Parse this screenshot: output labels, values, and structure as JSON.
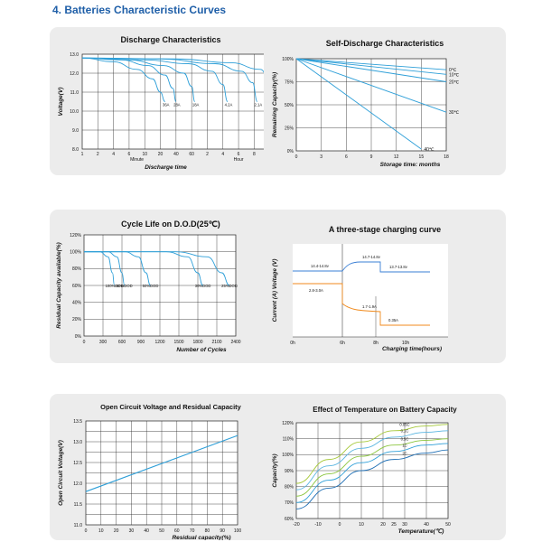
{
  "page_title": "4.  Batteries Characteristic Curves",
  "colors": {
    "curve": "#2e9fd8",
    "curve_dark": "#1f6fb5",
    "grid": "#222222",
    "title": "#1f5fa8",
    "orange": "#f08a1c",
    "blue": "#3a7fd5",
    "green": "#8cc63f"
  },
  "chart_data": [
    {
      "id": "discharge",
      "type": "line",
      "title": "Discharge Characteristics",
      "xlabel": "Discharge time",
      "ylabel": "Voltage(V)",
      "x_ticks": [
        "1",
        "2",
        "4",
        "6",
        "10",
        "20",
        "40",
        "60",
        "2",
        "4",
        "6",
        "8",
        "10",
        "12"
      ],
      "x_groups": [
        "Minute",
        "Hour"
      ],
      "y_ticks": [
        "8.0",
        "9.0",
        "10.0",
        "11.0",
        "12.0",
        "13.0"
      ],
      "ylim": [
        8.0,
        13.0
      ],
      "series": [
        {
          "name": "36A",
          "x": [
            0.0,
            2,
            3.5,
            4.5,
            5.0,
            5.3
          ],
          "y": [
            12.8,
            12.6,
            12.2,
            11.7,
            11.0,
            10.5
          ]
        },
        {
          "name": "28A",
          "x": [
            0.0,
            2.5,
            4.2,
            5.3,
            5.8,
            6.0
          ],
          "y": [
            12.8,
            12.7,
            12.4,
            11.9,
            11.2,
            10.5
          ]
        },
        {
          "name": "18A",
          "x": [
            0.0,
            3,
            5.2,
            6.5,
            7.0,
            7.2
          ],
          "y": [
            12.8,
            12.7,
            12.4,
            12.0,
            11.3,
            10.5
          ]
        },
        {
          "name": "4.2A",
          "x": [
            0.0,
            4,
            6.8,
            8.3,
            9.0,
            9.3
          ],
          "y": [
            12.8,
            12.7,
            12.5,
            12.1,
            11.4,
            10.5
          ]
        },
        {
          "name": "2.1A",
          "x": [
            0.0,
            5,
            8.5,
            10.2,
            10.9,
            11.2
          ],
          "y": [
            12.8,
            12.75,
            12.5,
            12.1,
            11.5,
            10.5
          ]
        },
        {
          "name": "1.05A",
          "x": [
            0.0,
            6,
            9.5,
            11.4,
            12.0,
            12.2
          ],
          "y": [
            12.8,
            12.75,
            12.55,
            12.2,
            11.6,
            10.5
          ]
        }
      ]
    },
    {
      "id": "self_discharge",
      "type": "line",
      "title": "Self-Discharge Characteristics",
      "xlabel": "Storage time: months",
      "ylabel": "Remaining Capacity(%)",
      "x_ticks": [
        "0",
        "3",
        "6",
        "9",
        "12",
        "15",
        "18"
      ],
      "y_ticks": [
        "0%",
        "25%",
        "50%",
        "75%",
        "100%"
      ],
      "xlim": [
        0,
        18
      ],
      "ylim": [
        0,
        100
      ],
      "series": [
        {
          "name": "0℃",
          "x": [
            0,
            18
          ],
          "y": [
            100,
            88
          ]
        },
        {
          "name": "10℃",
          "x": [
            0,
            18
          ],
          "y": [
            100,
            83
          ]
        },
        {
          "name": "20℃",
          "x": [
            0,
            18
          ],
          "y": [
            100,
            75
          ]
        },
        {
          "name": "30℃",
          "x": [
            0,
            18
          ],
          "y": [
            100,
            42
          ]
        },
        {
          "name": "40℃",
          "x": [
            0,
            15
          ],
          "y": [
            100,
            2
          ]
        }
      ]
    },
    {
      "id": "cycle_life",
      "type": "line",
      "title": "Cycle Life on D.O.D(25℃)",
      "xlabel": "Number of Cycles",
      "ylabel": "Residual Capacity available(%)",
      "x_ticks": [
        "0",
        "300",
        "600",
        "900",
        "1200",
        "1500",
        "1800",
        "2100",
        "2400"
      ],
      "y_ticks": [
        "0%",
        "20%",
        "40%",
        "60%",
        "80%",
        "100%",
        "120%"
      ],
      "xlim": [
        0,
        2400
      ],
      "ylim": [
        0,
        120
      ],
      "series": [
        {
          "name": "100%DOD",
          "x": [
            0,
            250,
            380,
            450,
            480
          ],
          "y": [
            100,
            100,
            94,
            75,
            60
          ]
        },
        {
          "name": "80%DOD",
          "x": [
            0,
            380,
            520,
            600,
            640
          ],
          "y": [
            100,
            100,
            94,
            75,
            60
          ]
        },
        {
          "name": "50%DOD",
          "x": [
            0,
            650,
            860,
            980,
            1050
          ],
          "y": [
            100,
            100,
            94,
            75,
            60
          ]
        },
        {
          "name": "30%DOD",
          "x": [
            0,
            1300,
            1640,
            1800,
            1880
          ],
          "y": [
            100,
            100,
            94,
            75,
            60
          ]
        },
        {
          "name": "25%DOD",
          "x": [
            0,
            1450,
            1950,
            2180,
            2300
          ],
          "y": [
            100,
            100,
            94,
            75,
            60
          ]
        }
      ],
      "labels": [
        "100%DOD",
        "80%DOD",
        "50%DOD",
        "30%DOD",
        "25%DOD"
      ]
    },
    {
      "id": "charging",
      "type": "line",
      "title": "A three-stage charging curve",
      "xlabel": "Charging time(hours)",
      "ylabel": "Current (A)  Voltage (V)",
      "x_ticks": [
        "0h",
        "6h",
        "8h",
        "10h"
      ],
      "annotations": [
        "14.4-14.8v",
        "14.7-14.8v",
        "13.7-13.8v",
        "2.8-3.0A",
        "1.7-1.9A",
        "0.35A"
      ]
    },
    {
      "id": "ocv",
      "type": "line",
      "title": "Open Circuit Voltage and Residual Capacity",
      "xlabel": "Residual capacity(%)",
      "ylabel": "Open Circuit Voltage(V)",
      "x_ticks": [
        "0",
        "10",
        "20",
        "30",
        "40",
        "50",
        "60",
        "70",
        "80",
        "90",
        "100"
      ],
      "y_ticks": [
        "11.0",
        "11.5",
        "12.0",
        "12.5",
        "13.0",
        "13.5"
      ],
      "xlim": [
        0,
        100
      ],
      "ylim": [
        11.0,
        13.5
      ],
      "series": [
        {
          "name": "OCV",
          "x": [
            0,
            100
          ],
          "y": [
            11.8,
            13.15
          ]
        }
      ]
    },
    {
      "id": "temperature",
      "type": "line",
      "title": "Effect of Temperature on Battery Capacity",
      "xlabel": "Temperature(℃)",
      "ylabel": "Capacity(%)",
      "x_ticks": [
        "-20",
        "-10",
        "0",
        "10",
        "20",
        "25",
        "30",
        "40",
        "50"
      ],
      "y_ticks": [
        "60%",
        "70%",
        "80%",
        "90%",
        "100%",
        "110%",
        "120%"
      ],
      "xlim": [
        -20,
        50
      ],
      "ylim": [
        60,
        120
      ],
      "series": [
        {
          "name": "0.05C",
          "x": [
            -20,
            -5,
            10,
            25,
            40,
            50
          ],
          "y": [
            82,
            97,
            108,
            115,
            118,
            119
          ]
        },
        {
          "name": "0.1C",
          "x": [
            -20,
            -5,
            10,
            25,
            40,
            50
          ],
          "y": [
            78,
            93,
            104,
            111,
            114,
            115
          ]
        },
        {
          "name": "0.5C",
          "x": [
            -20,
            -5,
            10,
            25,
            40,
            50
          ],
          "y": [
            74,
            88,
            99,
            106,
            109,
            110
          ]
        },
        {
          "name": "1C",
          "x": [
            -20,
            -5,
            10,
            25,
            40,
            50
          ],
          "y": [
            70,
            84,
            95,
            102,
            106,
            107
          ]
        },
        {
          "name": "2C",
          "x": [
            -20,
            -5,
            10,
            25,
            40,
            50
          ],
          "y": [
            66,
            79,
            90,
            97,
            101,
            103
          ]
        }
      ]
    }
  ]
}
